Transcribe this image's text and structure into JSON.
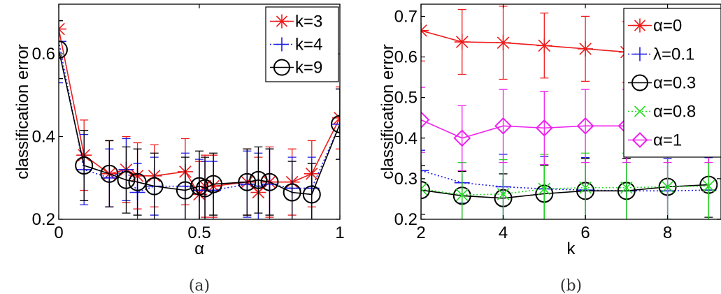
{
  "chart_data": [
    {
      "type": "line",
      "caption": "(a)",
      "xlabel": "α",
      "ylabel": "classification error",
      "xlim": [
        0,
        1
      ],
      "ylim": [
        0.2,
        0.72
      ],
      "xticks": [
        {
          "v": 0,
          "label": "0"
        },
        {
          "v": 0.5,
          "label": "0.5"
        },
        {
          "v": 1,
          "label": "1"
        }
      ],
      "yticks": [
        {
          "v": 0.2,
          "label": "0.2"
        },
        {
          "v": 0.4,
          "label": "0.4"
        },
        {
          "v": 0.6,
          "label": "0.6"
        }
      ],
      "grid": false,
      "legend_position": "top-right",
      "series": [
        {
          "name": "k=3",
          "color": "#ee1c1c",
          "marker": "star",
          "dash": "solid",
          "x": [
            0,
            0.09,
            0.18,
            0.24,
            0.28,
            0.34,
            0.45,
            0.5,
            0.52,
            0.55,
            0.67,
            0.71,
            0.75,
            0.83,
            0.9,
            1.0
          ],
          "y": [
            0.66,
            0.355,
            0.31,
            0.32,
            0.305,
            0.305,
            0.315,
            0.26,
            0.28,
            0.28,
            0.29,
            0.265,
            0.29,
            0.29,
            0.31,
            0.445
          ],
          "err": [
            0.07,
            0.085,
            0.08,
            0.08,
            0.08,
            0.075,
            0.08,
            0.08,
            0.075,
            0.075,
            0.08,
            0.085,
            0.085,
            0.08,
            0.08,
            0.075
          ]
        },
        {
          "name": "k=4",
          "color": "#1c1ce6",
          "marker": "plus",
          "dash": "dotted",
          "x": [
            0,
            0.09,
            0.18,
            0.24,
            0.28,
            0.34,
            0.45,
            0.5,
            0.52,
            0.55,
            0.67,
            0.71,
            0.75,
            0.83,
            0.9,
            1.0
          ],
          "y": [
            0.63,
            0.32,
            0.3,
            0.32,
            0.265,
            0.28,
            0.28,
            0.27,
            0.27,
            0.27,
            0.285,
            0.28,
            0.285,
            0.275,
            0.275,
            0.43
          ],
          "err": [
            0.1,
            0.085,
            0.07,
            0.075,
            0.07,
            0.07,
            0.08,
            0.075,
            0.07,
            0.07,
            0.08,
            0.08,
            0.085,
            0.075,
            0.075,
            0.085
          ]
        },
        {
          "name": "k=9",
          "color": "#000000",
          "marker": "circle",
          "dash": "solid",
          "x": [
            0,
            0.09,
            0.18,
            0.24,
            0.28,
            0.34,
            0.45,
            0.5,
            0.52,
            0.55,
            0.67,
            0.71,
            0.75,
            0.83,
            0.9,
            1.0
          ],
          "y": [
            0.61,
            0.33,
            0.31,
            0.295,
            0.29,
            0.28,
            0.27,
            0.28,
            0.275,
            0.285,
            0.29,
            0.295,
            0.29,
            0.265,
            0.26,
            0.43
          ],
          "err": [
            0.07,
            0.085,
            0.08,
            0.08,
            0.08,
            0.08,
            0.08,
            0.085,
            0.075,
            0.075,
            0.08,
            0.08,
            0.08,
            0.075,
            0.075,
            0.085
          ]
        }
      ]
    },
    {
      "type": "line",
      "caption": "(b)",
      "xlabel": "k",
      "ylabel": "classification error",
      "xlim": [
        2,
        9.3
      ],
      "ylim": [
        0.2,
        0.73
      ],
      "xticks": [
        {
          "v": 2,
          "label": "2"
        },
        {
          "v": 4,
          "label": "4"
        },
        {
          "v": 6,
          "label": "6"
        },
        {
          "v": 8,
          "label": "8"
        }
      ],
      "yticks": [
        {
          "v": 0.2,
          "label": "0.2"
        },
        {
          "v": 0.3,
          "label": "0.3"
        },
        {
          "v": 0.4,
          "label": "0.4"
        },
        {
          "v": 0.5,
          "label": "0.5"
        },
        {
          "v": 0.6,
          "label": "0.6"
        },
        {
          "v": 0.7,
          "label": "0.7"
        }
      ],
      "grid": false,
      "legend_position": "top-right",
      "series": [
        {
          "name": "α=0",
          "color": "#ee1c1c",
          "marker": "star",
          "dash": "solid",
          "x": [
            2,
            3,
            4,
            5,
            6,
            7,
            8,
            9
          ],
          "y": [
            0.665,
            0.637,
            0.635,
            0.628,
            0.62,
            0.612,
            0.61,
            0.61
          ],
          "err": [
            0.075,
            0.08,
            0.09,
            0.08,
            0.08,
            0.075,
            0.075,
            0.07
          ]
        },
        {
          "name": "λ=0.1",
          "color": "#1c1ce6",
          "marker": "plus",
          "dash": "dotted",
          "x": [
            2,
            3,
            4,
            5,
            6,
            7,
            8,
            9
          ],
          "y": [
            0.32,
            0.29,
            0.28,
            0.275,
            0.272,
            0.27,
            0.27,
            0.272
          ],
          "err": [
            0.05,
            0.05,
            0.08,
            0.08,
            0.08,
            0.08,
            0.08,
            0.08
          ]
        },
        {
          "name": "α=0.3",
          "color": "#000000",
          "marker": "circle",
          "dash": "solid",
          "x": [
            2,
            3,
            4,
            5,
            6,
            7,
            8,
            9
          ],
          "y": [
            0.272,
            0.258,
            0.252,
            0.263,
            0.27,
            0.27,
            0.28,
            0.285
          ],
          "err": [
            0.06,
            0.06,
            0.06,
            0.07,
            0.08,
            0.08,
            0.08,
            0.08
          ]
        },
        {
          "name": "α=0.8",
          "color": "#22dd22",
          "marker": "x",
          "dash": "dotted",
          "x": [
            2,
            3,
            4,
            5,
            6,
            7,
            8,
            9
          ],
          "y": [
            0.275,
            0.26,
            0.262,
            0.275,
            0.278,
            0.278,
            0.28,
            0.282
          ],
          "err": [
            0.09,
            0.08,
            0.085,
            0.085,
            0.085,
            0.085,
            0.085,
            0.085
          ]
        },
        {
          "name": "α=1",
          "color": "#ee22ee",
          "marker": "diamond",
          "dash": "solid",
          "x": [
            2,
            3,
            4,
            5,
            6,
            7,
            8,
            9
          ],
          "y": [
            0.445,
            0.4,
            0.43,
            0.425,
            0.43,
            0.43,
            0.43,
            0.43
          ],
          "err": [
            0.08,
            0.08,
            0.09,
            0.09,
            0.09,
            0.09,
            0.09,
            0.09
          ]
        }
      ]
    }
  ]
}
